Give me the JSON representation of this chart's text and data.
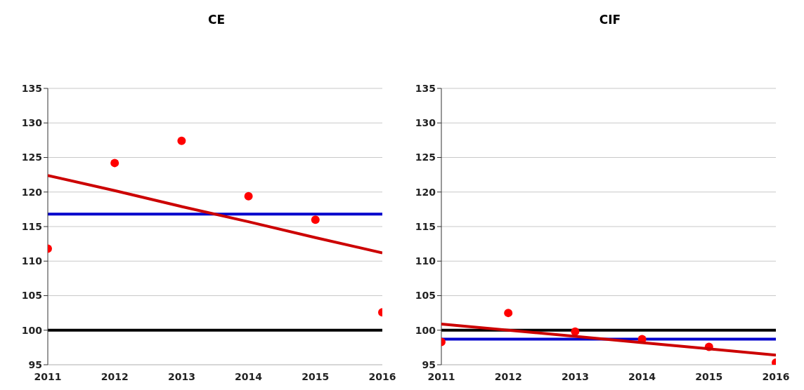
{
  "chart_data": [
    {
      "type": "scatter",
      "title": "CE",
      "x": [
        2011,
        2012,
        2013,
        2014,
        2015,
        2016
      ],
      "xlim": [
        2011,
        2016
      ],
      "xticks": [
        2011,
        2012,
        2013,
        2014,
        2015,
        2016
      ],
      "ylim": [
        95,
        135
      ],
      "yticks": [
        95,
        100,
        105,
        110,
        115,
        120,
        125,
        130,
        135
      ],
      "grid": "y",
      "series": [
        {
          "type": "scatter",
          "color": "#ff0000",
          "marker": "circle",
          "values": [
            111.8,
            124.2,
            127.4,
            119.4,
            116.0,
            102.6
          ]
        },
        {
          "type": "line",
          "color": "#cc0000",
          "marker": "none",
          "values": [
            122.4,
            120.2,
            117.9,
            115.7,
            113.4,
            111.2
          ]
        }
      ],
      "ref_lines": [
        {
          "axis": "y",
          "value": 116.8,
          "color": "#0000cc"
        },
        {
          "axis": "y",
          "value": 100,
          "color": "#000000"
        }
      ]
    },
    {
      "type": "scatter",
      "title": "CIF",
      "x": [
        2011,
        2012,
        2013,
        2014,
        2015,
        2016
      ],
      "xlim": [
        2011,
        2016
      ],
      "xticks": [
        2011,
        2012,
        2013,
        2014,
        2015,
        2016
      ],
      "ylim": [
        95,
        135
      ],
      "yticks": [
        95,
        100,
        105,
        110,
        115,
        120,
        125,
        130,
        135
      ],
      "grid": "y",
      "series": [
        {
          "type": "scatter",
          "color": "#ff0000",
          "marker": "circle",
          "values": [
            98.3,
            102.5,
            99.8,
            98.7,
            97.6,
            95.3
          ]
        },
        {
          "type": "line",
          "color": "#cc0000",
          "marker": "none",
          "values": [
            100.9,
            100.0,
            99.1,
            98.2,
            97.3,
            96.4
          ]
        }
      ],
      "ref_lines": [
        {
          "axis": "y",
          "value": 98.7,
          "color": "#0000cc"
        },
        {
          "axis": "y",
          "value": 100,
          "color": "#000000"
        }
      ]
    }
  ]
}
